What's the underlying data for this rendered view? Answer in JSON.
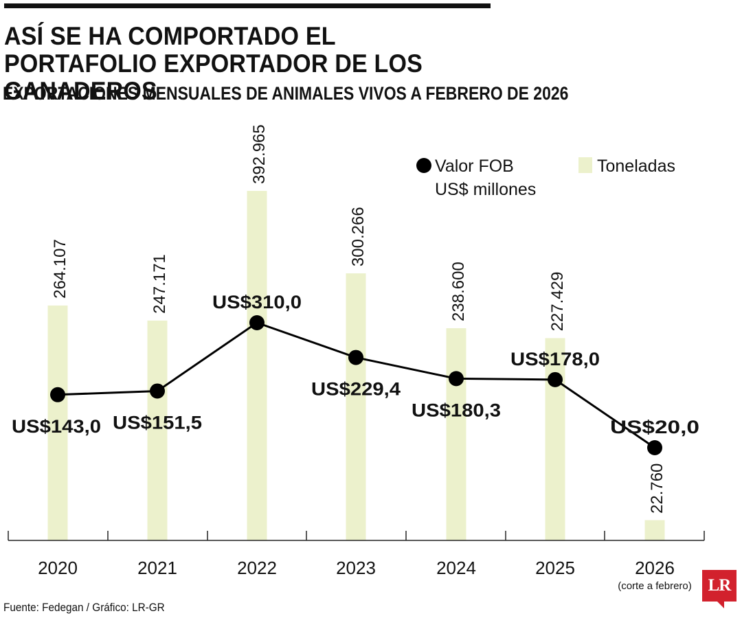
{
  "header": {
    "title": "ASÍ SE HA COMPORTADO EL PORTAFOLIO EXPORTADOR DE LOS GANADEROS",
    "subtitle": "EXPORTACIONES MENSUALES DE ANIMALES VIVOS A FEBRERO DE 2026"
  },
  "footer": {
    "source": "Fuente: Fedegan / Gráfico: LR-GR",
    "logo_text": "LR"
  },
  "colors": {
    "bar": "#ecf1cc",
    "line": "#000000",
    "text": "#111111",
    "brand": "#d2212d"
  },
  "chart_data": {
    "type": "bar",
    "title": "EXPORTACIONES MENSUALES DE ANIMALES VIVOS A FEBRERO DE 2026",
    "categories": [
      "2020",
      "2021",
      "2022",
      "2023",
      "2024",
      "2025",
      "2026"
    ],
    "category_notes": [
      "",
      "",
      "",
      "",
      "",
      "",
      "(corte a febrero)"
    ],
    "series": [
      {
        "name": "Toneladas",
        "kind": "bar",
        "values": [
          264107,
          247171,
          392965,
          300266,
          238600,
          227429,
          22760
        ],
        "labels": [
          "264.107",
          "247.171",
          "392.965",
          "300.266",
          "238.600",
          "227.429",
          "22.760"
        ]
      },
      {
        "name": "Valor FOB US$ millones",
        "kind": "line",
        "values": [
          143.0,
          151.5,
          310.0,
          229.4,
          180.3,
          178.0,
          20.0
        ],
        "labels": [
          "US$143,0",
          "US$151,5",
          "US$310,0",
          "US$229,4",
          "US$180,3",
          "US$178,0",
          "US$20,0"
        ]
      }
    ],
    "legend": {
      "line_label_1": "Valor FOB",
      "line_label_2": "US$ millones",
      "bar_label": "Toneladas",
      "position": "top-right"
    },
    "ylim_bars": [
      0,
      400000
    ],
    "ylim_line": [
      -330,
      410
    ]
  }
}
